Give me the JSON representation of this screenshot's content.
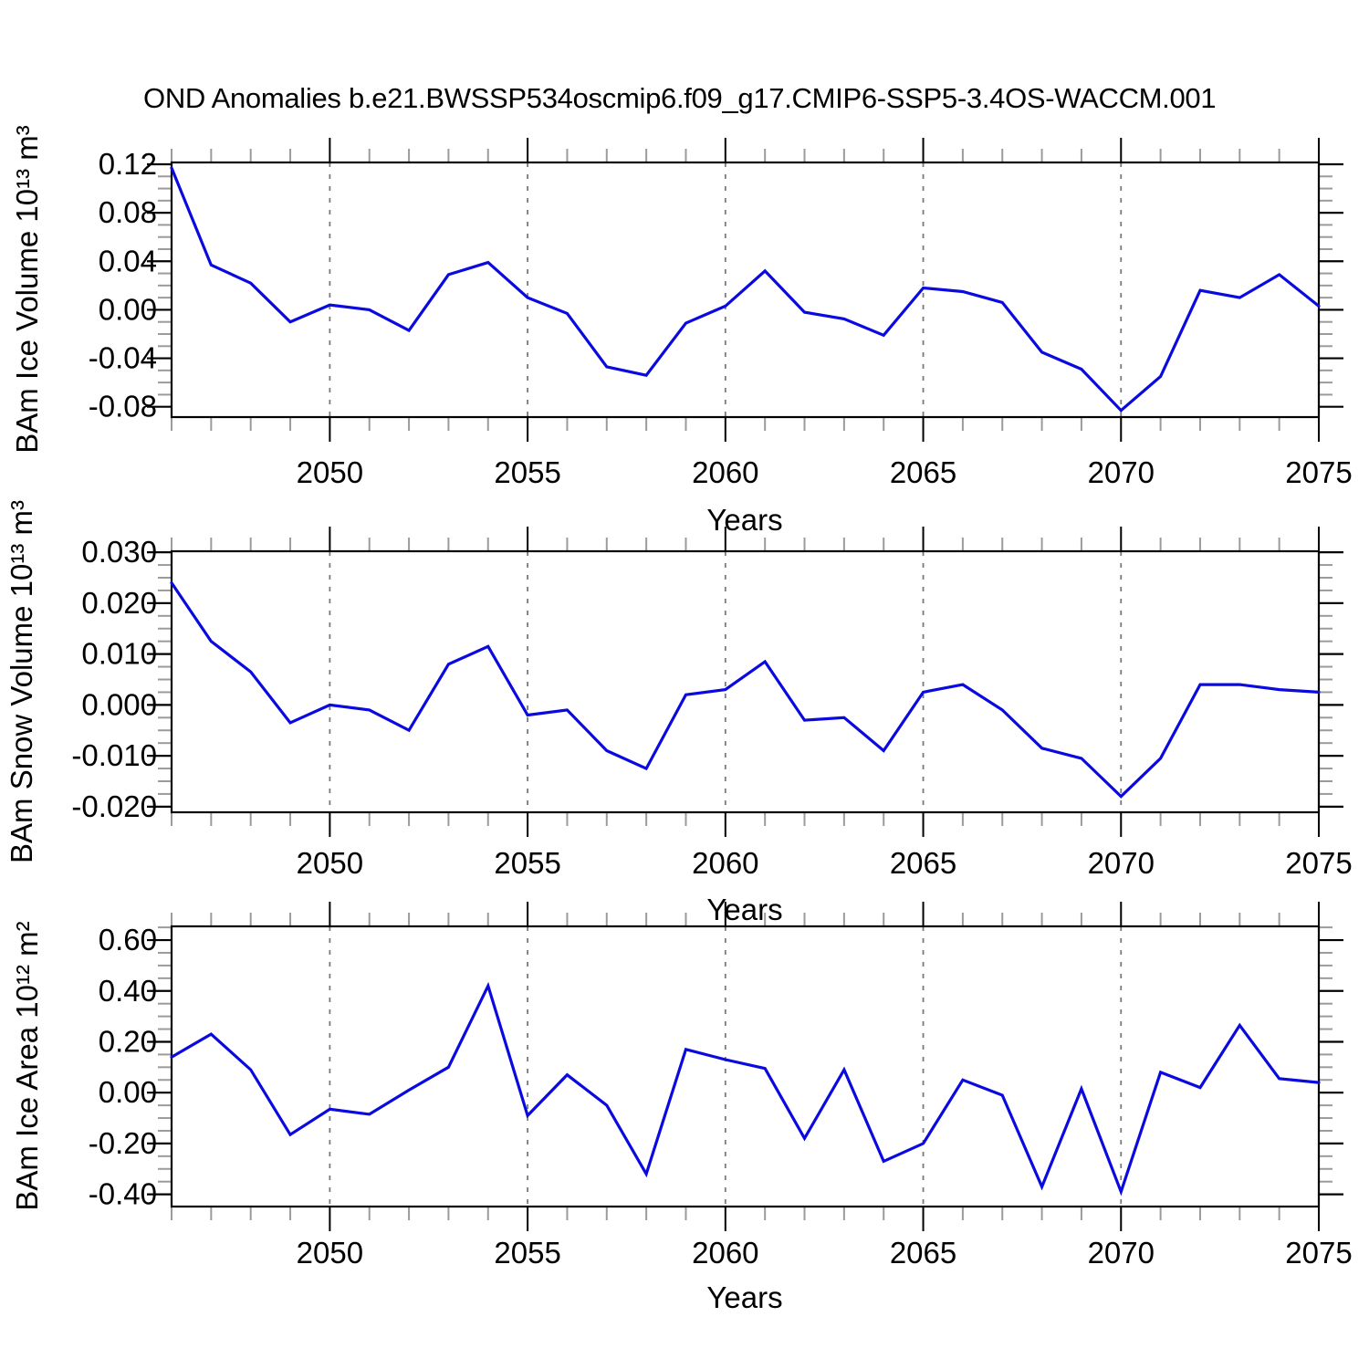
{
  "title": "OND Anomalies b.e21.BWSSP534oscmip6.f09_g17.CMIP6-SSP5-3.4OS-WACCM.001",
  "x_axis": {
    "label": "Years",
    "start_year": 2046,
    "end_year": 2075,
    "major_tick_years": [
      2050,
      2055,
      2060,
      2065,
      2070,
      2075
    ],
    "major_tick_labels": [
      "2050",
      "2055",
      "2060",
      "2065",
      "2070",
      "2075"
    ],
    "gridline_years": [
      2050,
      2055,
      2060,
      2065,
      2070
    ],
    "minor_tick_step_years": 1
  },
  "style": {
    "line_color": "#0a0ae0",
    "axis_color": "#000000",
    "minor_tick_color": "#9b9b9b",
    "gridline_color": "#7a7a7a",
    "background": "#ffffff"
  },
  "chart_data": [
    {
      "type": "line",
      "series_name": "BAm Ice Volume anomaly",
      "ylabel": "BAm Ice Volume 10¹³ m³",
      "xlabel": "Years",
      "x": [
        2046,
        2047,
        2048,
        2049,
        2050,
        2051,
        2052,
        2053,
        2054,
        2055,
        2056,
        2057,
        2058,
        2059,
        2060,
        2061,
        2062,
        2063,
        2064,
        2065,
        2066,
        2067,
        2068,
        2069,
        2070,
        2071,
        2072,
        2073,
        2074,
        2075
      ],
      "values": [
        0.117,
        0.037,
        0.022,
        -0.01,
        0.004,
        0.0,
        -0.017,
        0.029,
        0.039,
        0.01,
        -0.003,
        -0.047,
        -0.054,
        -0.011,
        0.003,
        0.032,
        -0.002,
        -0.0075,
        -0.021,
        0.018,
        0.015,
        0.006,
        -0.035,
        -0.049,
        -0.083,
        -0.055,
        0.016,
        0.01,
        0.029,
        0.003
      ],
      "ylim": [
        -0.0885,
        0.1215
      ],
      "yticks": [
        {
          "value": 0.12,
          "label": "0.12"
        },
        {
          "value": 0.08,
          "label": "0.08"
        },
        {
          "value": 0.04,
          "label": "0.04"
        },
        {
          "value": 0.0,
          "label": "0.00"
        },
        {
          "value": -0.04,
          "label": "-0.04"
        },
        {
          "value": -0.08,
          "label": "-0.08"
        }
      ],
      "y_minor_step": 0.01,
      "grid": "vertical-dashed"
    },
    {
      "type": "line",
      "series_name": "BAm Snow Volume anomaly",
      "ylabel": "BAm Snow Volume 10¹³ m³",
      "xlabel": "Years",
      "x": [
        2046,
        2047,
        2048,
        2049,
        2050,
        2051,
        2052,
        2053,
        2054,
        2055,
        2056,
        2057,
        2058,
        2059,
        2060,
        2061,
        2062,
        2063,
        2064,
        2065,
        2066,
        2067,
        2068,
        2069,
        2070,
        2071,
        2072,
        2073,
        2074,
        2075
      ],
      "values": [
        0.024,
        0.0125,
        0.0065,
        -0.0035,
        0.0,
        -0.001,
        -0.005,
        0.008,
        0.0115,
        -0.002,
        -0.001,
        -0.009,
        -0.0125,
        0.002,
        0.003,
        0.0085,
        -0.003,
        -0.0025,
        -0.009,
        0.0025,
        0.004,
        -0.001,
        -0.0085,
        -0.0105,
        -0.018,
        -0.0105,
        0.004,
        0.004,
        0.003,
        0.0025
      ],
      "ylim": [
        -0.0211,
        0.0302
      ],
      "yticks": [
        {
          "value": 0.03,
          "label": "0.030"
        },
        {
          "value": 0.02,
          "label": "0.020"
        },
        {
          "value": 0.01,
          "label": "0.010"
        },
        {
          "value": 0.0,
          "label": "0.000"
        },
        {
          "value": -0.01,
          "label": "-0.010"
        },
        {
          "value": -0.02,
          "label": "-0.020"
        }
      ],
      "y_minor_step": 0.0025,
      "grid": "vertical-dashed"
    },
    {
      "type": "line",
      "series_name": "BAm Ice Area anomaly",
      "ylabel": "BAm Ice Area 10¹² m²",
      "xlabel": "Years",
      "x": [
        2046,
        2047,
        2048,
        2049,
        2050,
        2051,
        2052,
        2053,
        2054,
        2055,
        2056,
        2057,
        2058,
        2059,
        2060,
        2061,
        2062,
        2063,
        2064,
        2065,
        2066,
        2067,
        2068,
        2069,
        2070,
        2071,
        2072,
        2073,
        2074,
        2075
      ],
      "values": [
        0.14,
        0.23,
        0.09,
        -0.165,
        -0.065,
        -0.085,
        0.01,
        0.1,
        0.42,
        -0.09,
        0.07,
        -0.05,
        -0.32,
        0.17,
        0.13,
        0.095,
        -0.18,
        0.09,
        -0.27,
        -0.2,
        0.05,
        -0.01,
        -0.37,
        0.015,
        -0.39,
        0.08,
        0.02,
        0.265,
        0.055,
        0.04
      ],
      "ylim": [
        -0.448,
        0.654
      ],
      "yticks": [
        {
          "value": 0.6,
          "label": "0.60"
        },
        {
          "value": 0.4,
          "label": "0.40"
        },
        {
          "value": 0.2,
          "label": "0.20"
        },
        {
          "value": 0.0,
          "label": "0.00"
        },
        {
          "value": -0.2,
          "label": "-0.20"
        },
        {
          "value": -0.4,
          "label": "-0.40"
        }
      ],
      "y_minor_step": 0.05,
      "grid": "vertical-dashed"
    }
  ]
}
